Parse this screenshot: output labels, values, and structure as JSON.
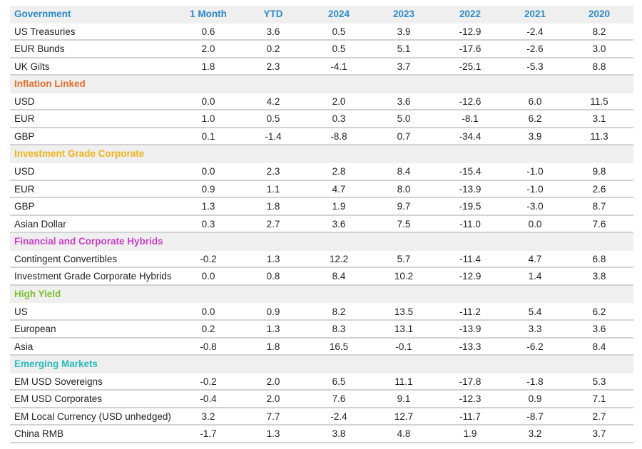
{
  "header_color": "#2a8ac8",
  "columns": [
    "1 Month",
    "YTD",
    "2024",
    "2023",
    "2022",
    "2021",
    "2020"
  ],
  "sections": [
    {
      "title": "Government",
      "color": "#2a8ac8",
      "rows": [
        {
          "label": "US Treasuries",
          "values": [
            "0.6",
            "3.6",
            "0.5",
            "3.9",
            "-12.9",
            "-2.4",
            "8.2"
          ]
        },
        {
          "label": "EUR Bunds",
          "values": [
            "2.0",
            "0.2",
            "0.5",
            "5.1",
            "-17.6",
            "-2.6",
            "3.0"
          ]
        },
        {
          "label": "UK Gilts",
          "values": [
            "1.8",
            "2.3",
            "-4.1",
            "3.7",
            "-25.1",
            "-5.3",
            "8.8"
          ]
        }
      ]
    },
    {
      "title": "Inflation Linked",
      "color": "#e8702a",
      "rows": [
        {
          "label": "USD",
          "values": [
            "0.0",
            "4.2",
            "2.0",
            "3.6",
            "-12.6",
            "6.0",
            "11.5"
          ]
        },
        {
          "label": "EUR",
          "values": [
            "1.0",
            "0.5",
            "0.3",
            "5.0",
            "-8.1",
            "6.2",
            "3.1"
          ]
        },
        {
          "label": "GBP",
          "values": [
            "0.1",
            "-1.4",
            "-8.8",
            "0.7",
            "-34.4",
            "3.9",
            "11.3"
          ]
        }
      ]
    },
    {
      "title": "Investment Grade Corporate",
      "color": "#f0b41c",
      "rows": [
        {
          "label": "USD",
          "values": [
            "0.0",
            "2.3",
            "2.8",
            "8.4",
            "-15.4",
            "-1.0",
            "9.8"
          ]
        },
        {
          "label": "EUR",
          "values": [
            "0.9",
            "1.1",
            "4.7",
            "8.0",
            "-13.9",
            "-1.0",
            "2.6"
          ]
        },
        {
          "label": "GBP",
          "values": [
            "1.3",
            "1.8",
            "1.9",
            "9.7",
            "-19.5",
            "-3.0",
            "8.7"
          ]
        },
        {
          "label": "Asian Dollar",
          "values": [
            "0.3",
            "2.7",
            "3.6",
            "7.5",
            "-11.0",
            "0.0",
            "7.6"
          ]
        }
      ]
    },
    {
      "title": "Financial and Corporate Hybrids",
      "color": "#c93fc9",
      "rows": [
        {
          "label": "Contingent Convertibles",
          "values": [
            "-0.2",
            "1.3",
            "12.2",
            "5.7",
            "-11.4",
            "4.7",
            "6.8"
          ]
        },
        {
          "label": "Investment Grade Corporate Hybrids",
          "values": [
            "0.0",
            "0.8",
            "8.4",
            "10.2",
            "-12.9",
            "1.4",
            "3.8"
          ]
        }
      ]
    },
    {
      "title": "High Yield",
      "color": "#7cbf2e",
      "rows": [
        {
          "label": "US",
          "values": [
            "0.0",
            "0.9",
            "8.2",
            "13.5",
            "-11.2",
            "5.4",
            "6.2"
          ]
        },
        {
          "label": "European",
          "values": [
            "0.2",
            "1.3",
            "8.3",
            "13.1",
            "-13.9",
            "3.3",
            "3.6"
          ]
        },
        {
          "label": "Asia",
          "values": [
            "-0.8",
            "1.8",
            "16.5",
            "-0.1",
            "-13.3",
            "-6.2",
            "8.4"
          ]
        }
      ]
    },
    {
      "title": "Emerging Markets",
      "color": "#2bbbbb",
      "rows": [
        {
          "label": "EM USD Sovereigns",
          "values": [
            "-0.2",
            "2.0",
            "6.5",
            "11.1",
            "-17.8",
            "-1.8",
            "5.3"
          ]
        },
        {
          "label": "EM USD Corporates",
          "values": [
            "-0.4",
            "2.0",
            "7.6",
            "9.1",
            "-12.3",
            "0.9",
            "7.1"
          ]
        },
        {
          "label": "EM Local Currency (USD unhedged)",
          "values": [
            "3.2",
            "7.7",
            "-2.4",
            "12.7",
            "-11.7",
            "-8.7",
            "2.7"
          ]
        },
        {
          "label": "China RMB",
          "values": [
            "-1.7",
            "1.3",
            "3.8",
            "4.8",
            "1.9",
            "3.2",
            "3.7"
          ]
        }
      ]
    }
  ]
}
